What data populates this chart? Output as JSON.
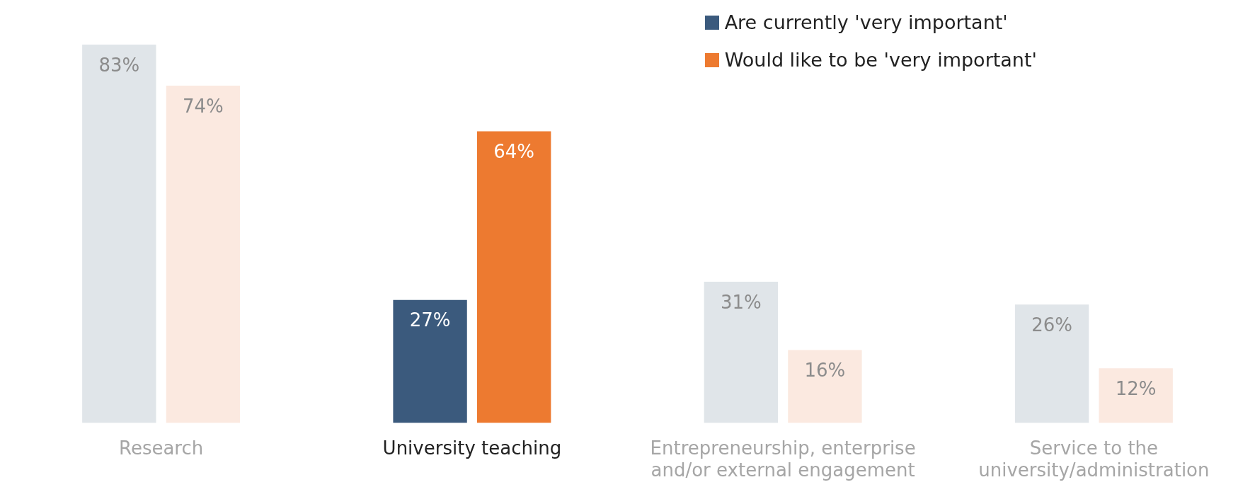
{
  "chart_data": {
    "type": "bar",
    "categories": [
      "Research",
      "University teaching",
      "Entrepreneurship, enterprise and/or external engagement",
      "Service to the university/administration"
    ],
    "series": [
      {
        "name": "Are currently 'very important'",
        "color": "#3b5a7d",
        "colors": [
          "#e0e5e9",
          "#3b5a7d",
          "#e0e5e9",
          "#e0e5e9"
        ],
        "values": [
          83,
          27,
          31,
          26
        ],
        "value_labels": [
          "83%",
          "27%",
          "31%",
          "26%"
        ]
      },
      {
        "name": "Would like to be 'very important'",
        "color": "#ed7a30",
        "colors": [
          "#fbe9e0",
          "#ed7a30",
          "#fbe9e0",
          "#fbe9e0"
        ],
        "values": [
          74,
          64,
          16,
          12
        ],
        "value_labels": [
          "74%",
          "64%",
          "16%",
          "12%"
        ]
      }
    ],
    "legend": "top right",
    "grid": false
  }
}
